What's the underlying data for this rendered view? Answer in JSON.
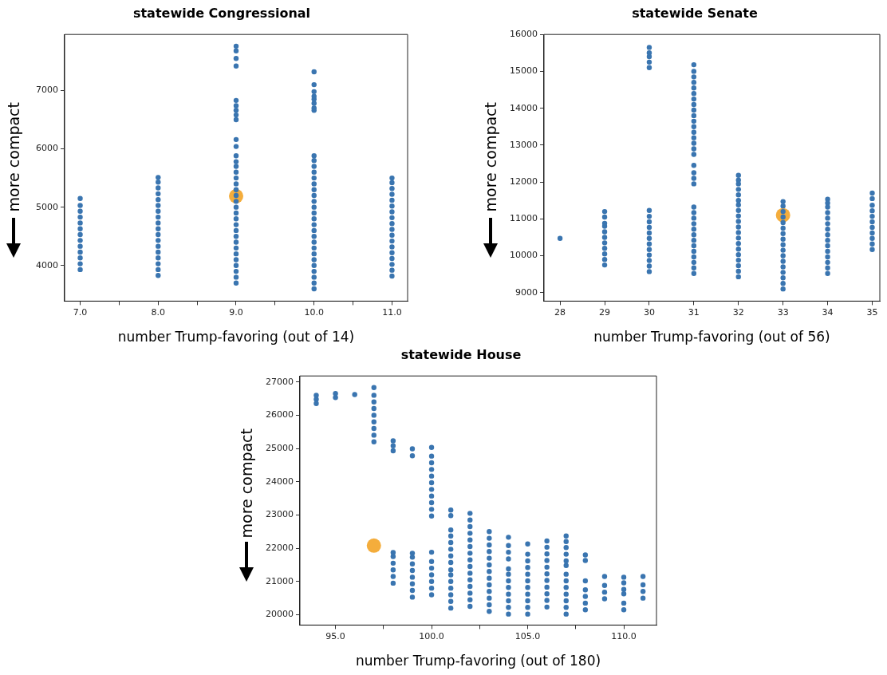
{
  "chart_data": [
    {
      "type": "scatter",
      "title": "statewide Congressional",
      "xlabel": "number Trump-favoring (out of 14)",
      "ylabel": "more compact",
      "marker": "circle",
      "xlim": [
        6.8,
        11.2
      ],
      "ylim": [
        3390,
        7960
      ],
      "xticks": [
        {
          "value": 7,
          "label": "7.0"
        },
        {
          "value": 7.5,
          "label": null
        },
        {
          "value": 8,
          "label": "8.0"
        },
        {
          "value": 8.5,
          "label": null
        },
        {
          "value": 9,
          "label": "9.0"
        },
        {
          "value": 9.5,
          "label": null
        },
        {
          "value": 10,
          "label": "10.0"
        },
        {
          "value": 10.5,
          "label": null
        },
        {
          "value": 11,
          "label": "11.0"
        }
      ],
      "yticks": [
        4000,
        5000,
        6000,
        7000
      ],
      "series": [
        {
          "color": "#3a75b0",
          "x": [
            7,
            7,
            7,
            7,
            7,
            7,
            7,
            7,
            7,
            7,
            7,
            7,
            7
          ],
          "values": [
            3930,
            4030,
            4130,
            4230,
            4330,
            4430,
            4530,
            4630,
            4730,
            4830,
            4930,
            5030,
            5150
          ]
        },
        {
          "color": "#3a75b0",
          "x": [
            8,
            8,
            8,
            8,
            8,
            8,
            8,
            8,
            8,
            8,
            8,
            8,
            8,
            8,
            8,
            8,
            8,
            8
          ],
          "values": [
            3830,
            3930,
            4030,
            4130,
            4230,
            4330,
            4430,
            4530,
            4630,
            4730,
            4830,
            4930,
            5030,
            5130,
            5230,
            5330,
            5430,
            5510
          ]
        },
        {
          "color": "#3a75b0",
          "x": [
            9,
            9,
            9,
            9,
            9,
            9,
            9,
            9,
            9,
            9,
            9,
            9,
            9,
            9,
            9,
            9,
            9,
            9,
            9,
            9,
            9,
            9,
            9,
            9,
            9,
            9,
            9,
            9,
            9,
            9,
            9,
            9,
            9,
            9
          ],
          "values": [
            3700,
            3800,
            3900,
            4000,
            4100,
            4200,
            4300,
            4400,
            4500,
            4600,
            4700,
            4800,
            4900,
            5000,
            5100,
            5200,
            5300,
            5400,
            5500,
            5600,
            5700,
            5780,
            5880,
            6040,
            6160,
            6500,
            6580,
            6660,
            6740,
            6830,
            7420,
            7550,
            7680,
            7760
          ]
        },
        {
          "color": "#3a75b0",
          "x": [
            10,
            10,
            10,
            10,
            10,
            10,
            10,
            10,
            10,
            10,
            10,
            10,
            10,
            10,
            10,
            10,
            10,
            10,
            10,
            10,
            10,
            10,
            10,
            10,
            10,
            10,
            10,
            10,
            10,
            10,
            10,
            10
          ],
          "values": [
            3600,
            3700,
            3800,
            3900,
            4000,
            4100,
            4200,
            4300,
            4400,
            4500,
            4600,
            4700,
            4800,
            4900,
            5000,
            5100,
            5200,
            5300,
            5400,
            5500,
            5600,
            5700,
            5800,
            5880,
            6660,
            6700,
            6780,
            6850,
            6900,
            6980,
            7100,
            7320
          ]
        },
        {
          "color": "#3a75b0",
          "x": [
            11,
            11,
            11,
            11,
            11,
            11,
            11,
            11,
            11,
            11,
            11,
            11,
            11,
            11,
            11,
            11,
            11,
            11
          ],
          "values": [
            3820,
            3920,
            4020,
            4120,
            4220,
            4320,
            4420,
            4520,
            4620,
            4720,
            4820,
            4920,
            5020,
            5120,
            5220,
            5320,
            5420,
            5500
          ]
        },
        {
          "color": "#f4ad3c",
          "x": [
            9
          ],
          "values": [
            5190
          ]
        }
      ]
    },
    {
      "type": "scatter",
      "title": "statewide Senate",
      "xlabel": "number Trump-favoring (out of 56)",
      "ylabel": "more compact",
      "marker": "circle",
      "xlim": [
        27.64,
        35.17
      ],
      "ylim": [
        8770,
        16000
      ],
      "xticks": [
        28,
        29,
        30,
        31,
        32,
        33,
        34,
        35
      ],
      "yticks": [
        9000,
        10000,
        11000,
        12000,
        13000,
        14000,
        15000,
        16000
      ],
      "series": [
        {
          "color": "#3a75b0",
          "x": [
            28
          ],
          "values": [
            10470
          ]
        },
        {
          "color": "#3a75b0",
          "x": [
            29,
            29,
            29,
            29,
            29,
            29,
            29,
            29,
            29,
            29,
            29
          ],
          "values": [
            9750,
            9900,
            10050,
            10200,
            10350,
            10500,
            10650,
            10800,
            10880,
            11050,
            11200
          ]
        },
        {
          "color": "#3a75b0",
          "x": [
            30,
            30,
            30,
            30,
            30,
            30,
            30,
            30,
            30,
            30,
            30,
            30,
            30,
            30,
            30,
            30,
            30
          ],
          "values": [
            9570,
            9720,
            9870,
            10020,
            10170,
            10320,
            10470,
            10620,
            10770,
            10920,
            11070,
            11230,
            15100,
            15250,
            15400,
            15500,
            15650
          ]
        },
        {
          "color": "#3a75b0",
          "x": [
            31,
            31,
            31,
            31,
            31,
            31,
            31,
            31,
            31,
            31,
            31,
            31,
            31,
            31,
            31,
            31,
            31,
            31,
            31,
            31,
            31,
            31,
            31,
            31,
            31,
            31,
            31,
            31,
            31,
            31,
            31,
            31,
            31,
            31
          ],
          "values": [
            9520,
            9670,
            9820,
            9970,
            10120,
            10270,
            10420,
            10570,
            10720,
            10870,
            11020,
            11170,
            11320,
            11950,
            12100,
            12250,
            12450,
            12750,
            12900,
            13050,
            13200,
            13350,
            13500,
            13650,
            13800,
            13950,
            14100,
            14250,
            14400,
            14550,
            14700,
            14850,
            15000,
            15180
          ]
        },
        {
          "color": "#3a75b0",
          "x": [
            32,
            32,
            32,
            32,
            32,
            32,
            32,
            32,
            32,
            32,
            32,
            32,
            32,
            32,
            32,
            32,
            32,
            32,
            32,
            32
          ],
          "values": [
            9430,
            9580,
            9730,
            9880,
            10030,
            10180,
            10330,
            10480,
            10630,
            10780,
            10930,
            11080,
            11230,
            11380,
            11500,
            11650,
            11800,
            11950,
            12050,
            12180
          ]
        },
        {
          "color": "#3a75b0",
          "x": [
            33,
            33,
            33,
            33,
            33,
            33,
            33,
            33,
            33,
            33,
            33,
            33,
            33,
            33,
            33,
            33,
            33
          ],
          "values": [
            9100,
            9250,
            9400,
            9550,
            9700,
            9850,
            10000,
            10150,
            10300,
            10450,
            10600,
            10750,
            10900,
            11050,
            11200,
            11350,
            11470
          ]
        },
        {
          "color": "#3a75b0",
          "x": [
            34,
            34,
            34,
            34,
            34,
            34,
            34,
            34,
            34,
            34,
            34,
            34,
            34,
            34,
            34
          ],
          "values": [
            9520,
            9670,
            9820,
            9970,
            10120,
            10270,
            10420,
            10570,
            10720,
            10870,
            11020,
            11170,
            11320,
            11430,
            11530
          ]
        },
        {
          "color": "#3a75b0",
          "x": [
            35,
            35,
            35,
            35,
            35,
            35,
            35,
            35,
            35,
            35,
            35
          ],
          "values": [
            10170,
            10320,
            10470,
            10620,
            10770,
            10920,
            11070,
            11220,
            11370,
            11550,
            11700
          ]
        },
        {
          "color": "#f4ad3c",
          "x": [
            33
          ],
          "values": [
            11100
          ]
        }
      ]
    },
    {
      "type": "scatter",
      "title": "statewide House",
      "xlabel": "number Trump-favoring (out of 180)",
      "ylabel": "more compact",
      "marker": "circle",
      "xlim": [
        93.15,
        111.7
      ],
      "ylim": [
        19690,
        27180
      ],
      "xticks": [
        {
          "value": 95,
          "label": "95.0"
        },
        {
          "value": 97.5,
          "label": null
        },
        {
          "value": 100,
          "label": "100.0"
        },
        {
          "value": 102.5,
          "label": null
        },
        {
          "value": 105,
          "label": "105.0"
        },
        {
          "value": 107.5,
          "label": null
        },
        {
          "value": 110,
          "label": "110.0"
        }
      ],
      "yticks": [
        20000,
        21000,
        22000,
        23000,
        24000,
        25000,
        26000,
        27000
      ],
      "series": [
        {
          "color": "#3a75b0",
          "x": [
            94,
            94,
            94,
            95,
            95,
            96
          ],
          "values": [
            26350,
            26480,
            26600,
            26530,
            26650,
            26620
          ]
        },
        {
          "color": "#3a75b0",
          "x": [
            97,
            97,
            97,
            97,
            97,
            97,
            97,
            97,
            97
          ],
          "values": [
            25200,
            25400,
            25600,
            25800,
            26000,
            26200,
            26400,
            26600,
            26830
          ]
        },
        {
          "color": "#3a75b0",
          "x": [
            98,
            98,
            98,
            98,
            98,
            98,
            98,
            98,
            98
          ],
          "values": [
            24930,
            25080,
            25230,
            20950,
            21150,
            21350,
            21550,
            21750,
            21870
          ]
        },
        {
          "color": "#3a75b0",
          "x": [
            99,
            99,
            99,
            99,
            99,
            99,
            99,
            99,
            99,
            99
          ],
          "values": [
            24780,
            24990,
            20530,
            20730,
            20930,
            21130,
            21330,
            21530,
            21730,
            21850
          ]
        },
        {
          "color": "#3a75b0",
          "x": [
            100,
            100,
            100,
            100,
            100,
            100,
            100,
            100,
            100,
            100,
            100,
            100,
            100,
            100,
            100,
            100,
            100,
            100
          ],
          "values": [
            22970,
            23170,
            23370,
            23570,
            23770,
            23970,
            24170,
            24370,
            24570,
            24770,
            25030,
            20600,
            20800,
            21000,
            21200,
            21400,
            21600,
            21880
          ]
        },
        {
          "color": "#3a75b0",
          "x": [
            101,
            101,
            101,
            101,
            101,
            101,
            101,
            101,
            101,
            101,
            101,
            101,
            101,
            101,
            101
          ],
          "values": [
            22980,
            23150,
            20200,
            20400,
            20600,
            20800,
            21000,
            21200,
            21350,
            21570,
            21770,
            21970,
            22170,
            22370,
            22550
          ]
        },
        {
          "color": "#3a75b0",
          "x": [
            102,
            102,
            102,
            102,
            102,
            102,
            102,
            102,
            102,
            102,
            102,
            102,
            102,
            102,
            102
          ],
          "values": [
            20250,
            20450,
            20650,
            20850,
            21050,
            21250,
            21450,
            21650,
            21850,
            22050,
            22250,
            22450,
            22650,
            22850,
            23050
          ]
        },
        {
          "color": "#3a75b0",
          "x": [
            103,
            103,
            103,
            103,
            103,
            103,
            103,
            103,
            103,
            103,
            103,
            103,
            103
          ],
          "values": [
            20100,
            20300,
            20500,
            20700,
            20900,
            21100,
            21300,
            21500,
            21700,
            21900,
            22100,
            22300,
            22500
          ]
        },
        {
          "color": "#3a75b0",
          "x": [
            104,
            104,
            104,
            104,
            104,
            104,
            104,
            104,
            104,
            104,
            104,
            104
          ],
          "values": [
            20020,
            20220,
            20420,
            20620,
            20820,
            21020,
            21220,
            21380,
            21680,
            21880,
            22080,
            22330
          ]
        },
        {
          "color": "#3a75b0",
          "x": [
            105,
            105,
            105,
            105,
            105,
            105,
            105,
            105,
            105,
            105,
            105
          ],
          "values": [
            20020,
            20220,
            20420,
            20620,
            20820,
            21020,
            21220,
            21420,
            21620,
            21820,
            22130
          ]
        },
        {
          "color": "#3a75b0",
          "x": [
            106,
            106,
            106,
            106,
            106,
            106,
            106,
            106,
            106,
            106,
            106
          ],
          "values": [
            20230,
            20430,
            20630,
            20830,
            21030,
            21230,
            21430,
            21630,
            21830,
            22030,
            22220
          ]
        },
        {
          "color": "#3a75b0",
          "x": [
            107,
            107,
            107,
            107,
            107,
            107,
            107,
            107,
            107,
            107,
            107,
            107,
            107
          ],
          "values": [
            20020,
            20220,
            20420,
            20620,
            20820,
            21020,
            21220,
            21480,
            21620,
            21820,
            22020,
            22200,
            22370
          ]
        },
        {
          "color": "#3a75b0",
          "x": [
            108,
            108,
            108,
            108,
            108,
            108,
            108,
            109,
            109,
            109,
            109
          ],
          "values": [
            20150,
            20350,
            20550,
            20750,
            21020,
            21630,
            21800,
            20480,
            20680,
            20880,
            21150
          ]
        },
        {
          "color": "#3a75b0",
          "x": [
            110,
            110,
            110,
            110,
            110,
            110,
            111,
            111,
            111,
            111
          ],
          "values": [
            20150,
            20350,
            20630,
            20760,
            20960,
            21130,
            20500,
            20700,
            20900,
            21150
          ]
        },
        {
          "color": "#f4ad3c",
          "x": [
            97
          ],
          "values": [
            22080
          ]
        }
      ]
    }
  ]
}
